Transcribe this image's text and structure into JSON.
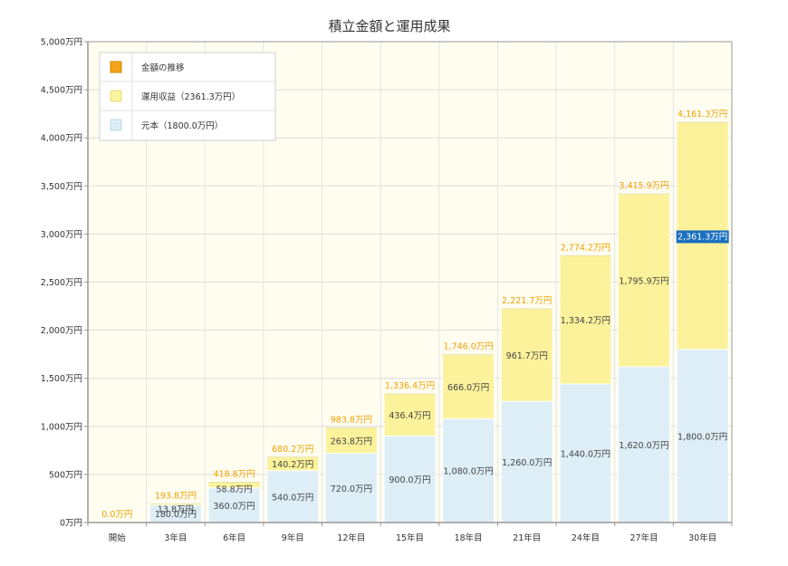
{
  "chart_data": {
    "type": "bar",
    "stacked": true,
    "title": "積立金額と運用成果",
    "categories": [
      "開始",
      "3年目",
      "6年目",
      "9年目",
      "12年目",
      "15年目",
      "18年目",
      "21年目",
      "24年目",
      "27年目",
      "30年目"
    ],
    "ylim": [
      0,
      5000
    ],
    "yticks": [
      "0万円",
      "500万円",
      "1,000万円",
      "1,500万円",
      "2,000万円",
      "2,500万円",
      "3,000万円",
      "3,500万円",
      "4,000万円",
      "4,500万円",
      "5,000万円"
    ],
    "grid": true,
    "legend_position": "top-left",
    "series": [
      {
        "name": "元本（1800.0万円）",
        "color": "#ddeef6",
        "values": [
          0,
          180.0,
          360.0,
          540.0,
          720.0,
          900.0,
          1080.0,
          1260.0,
          1440.0,
          1620.0,
          1800.0
        ],
        "labels": [
          "",
          "180.0万円",
          "360.0万円",
          "540.0万円",
          "720.0万円",
          "900.0万円",
          "1,080.0万円",
          "1,260.0万円",
          "1,440.0万円",
          "1,620.0万円",
          "1,800.0万円"
        ]
      },
      {
        "name": "運用収益（2361.3万円）",
        "color": "#fcf29b",
        "values": [
          0,
          13.8,
          58.8,
          140.2,
          263.8,
          436.4,
          666.0,
          961.7,
          1334.2,
          1795.9,
          2361.3
        ],
        "labels": [
          "",
          "13.8万円",
          "58.8万円",
          "140.2万円",
          "263.8万円",
          "436.4万円",
          "666.0万円",
          "961.7万円",
          "1,334.2万円",
          "1,795.9万円",
          "2,361.3万円"
        ]
      }
    ],
    "totals": {
      "name": "金額の推移",
      "color": "#f5a31a",
      "values": [
        0.0,
        193.8,
        418.8,
        680.2,
        983.8,
        1336.4,
        1746.0,
        2221.7,
        2774.2,
        3415.9,
        4161.3
      ],
      "labels": [
        "0.0万円",
        "193.8万円",
        "418.8万円",
        "680.2万円",
        "983.8万円",
        "1,336.4万円",
        "1,746.0万円",
        "2,221.7万円",
        "2,774.2万円",
        "3,415.9万円",
        "4,161.3万円"
      ]
    },
    "highlight": {
      "category_index": 10,
      "series_index": 1,
      "color": "#1a6fbf"
    }
  }
}
